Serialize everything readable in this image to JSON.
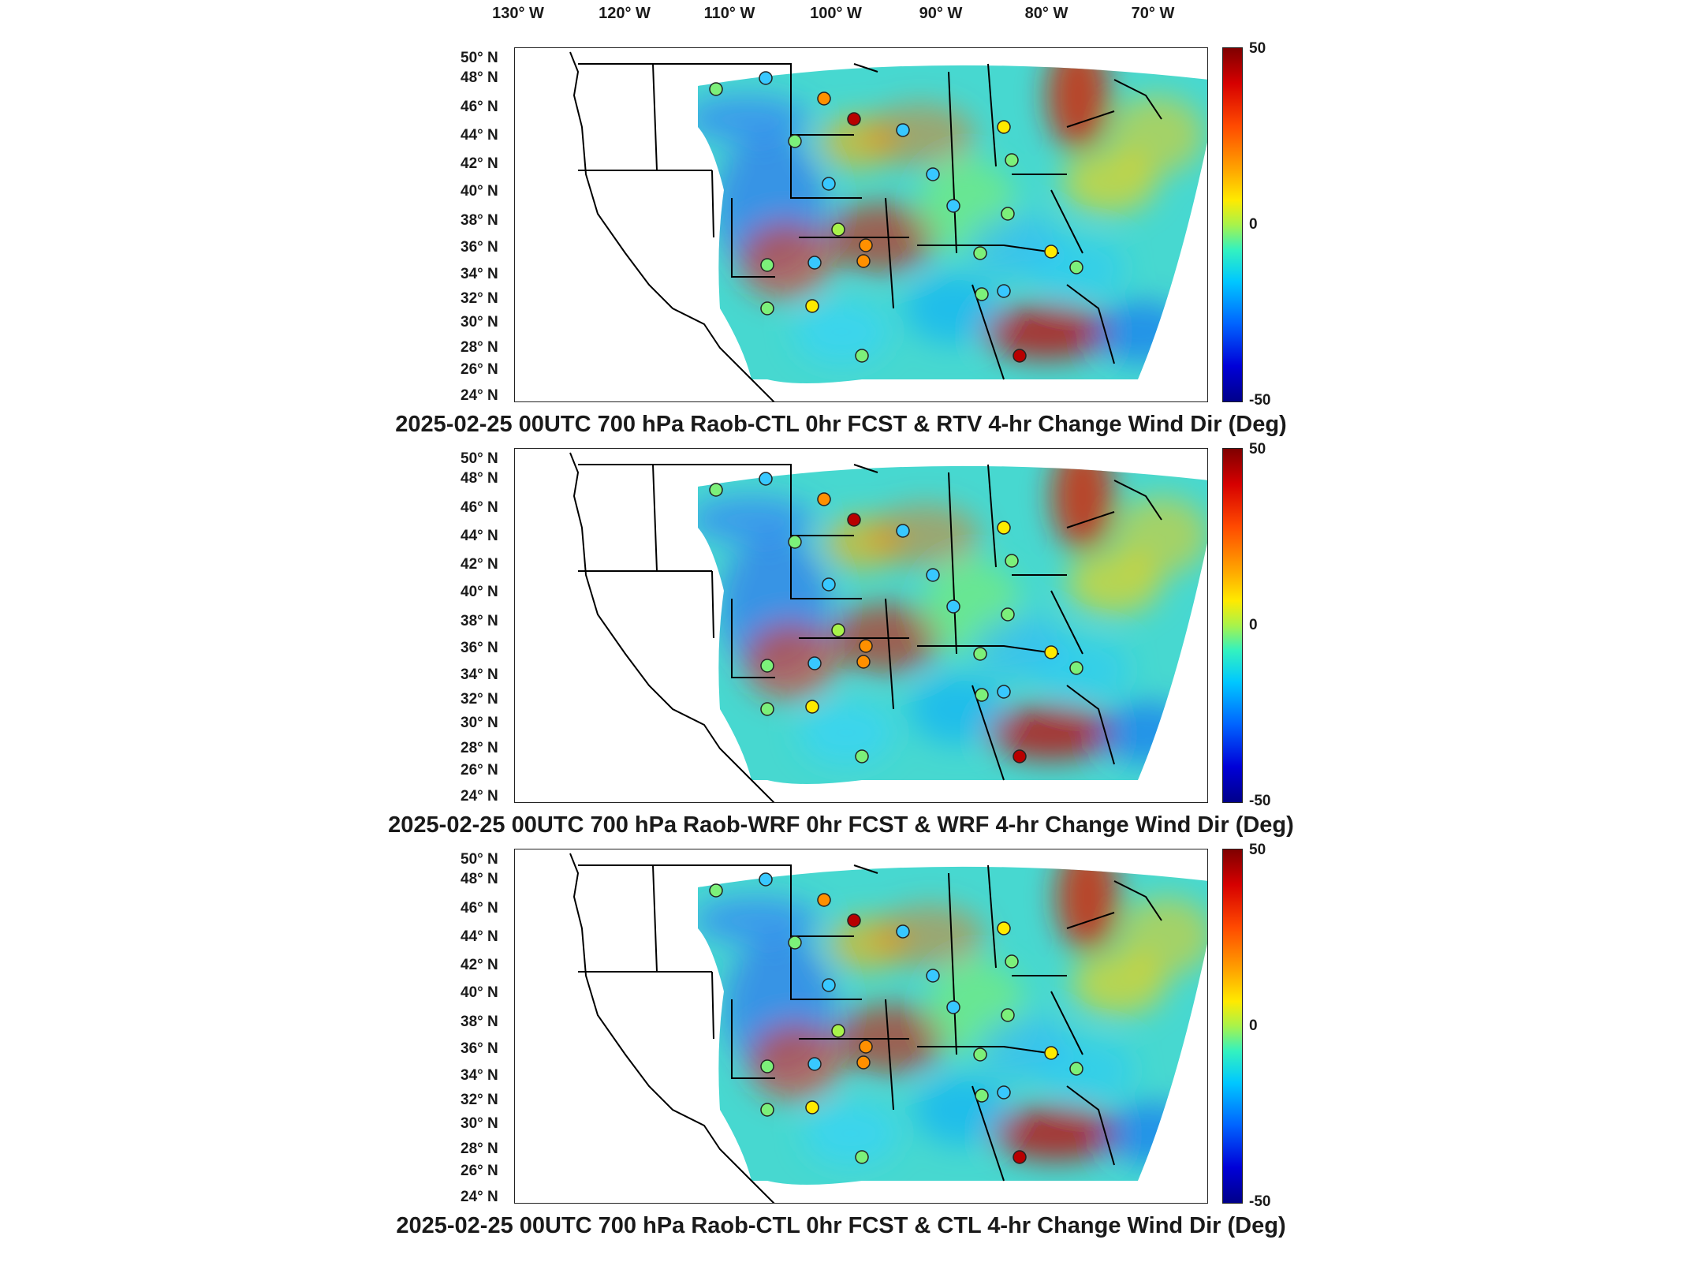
{
  "longitude_labels": [
    "130° W",
    "120° W",
    "110° W",
    "100° W",
    "90° W",
    "80° W",
    "70° W"
  ],
  "latitude_labels": [
    "50° N",
    "48° N",
    "46° N",
    "44° N",
    "42° N",
    "40° N",
    "38° N",
    "36° N",
    "34° N",
    "32° N",
    "30° N",
    "28° N",
    "26° N",
    "24° N"
  ],
  "colorbar": {
    "max": "50",
    "mid": "0",
    "min": "-50"
  },
  "panels": [
    {
      "title": "2025-02-25 00UTC 700 hPa Raob-CTL 0hr FCST & RTV 4-hr Change Wind Dir (Deg)"
    },
    {
      "title": "2025-02-25 00UTC 700 hPa Raob-WRF 0hr FCST & WRF 4-hr Change Wind Dir (Deg)"
    },
    {
      "title": "2025-02-25 00UTC 700 hPa Raob-CTL 0hr FCST & CTL 4-hr Change Wind Dir (Deg)"
    }
  ]
}
